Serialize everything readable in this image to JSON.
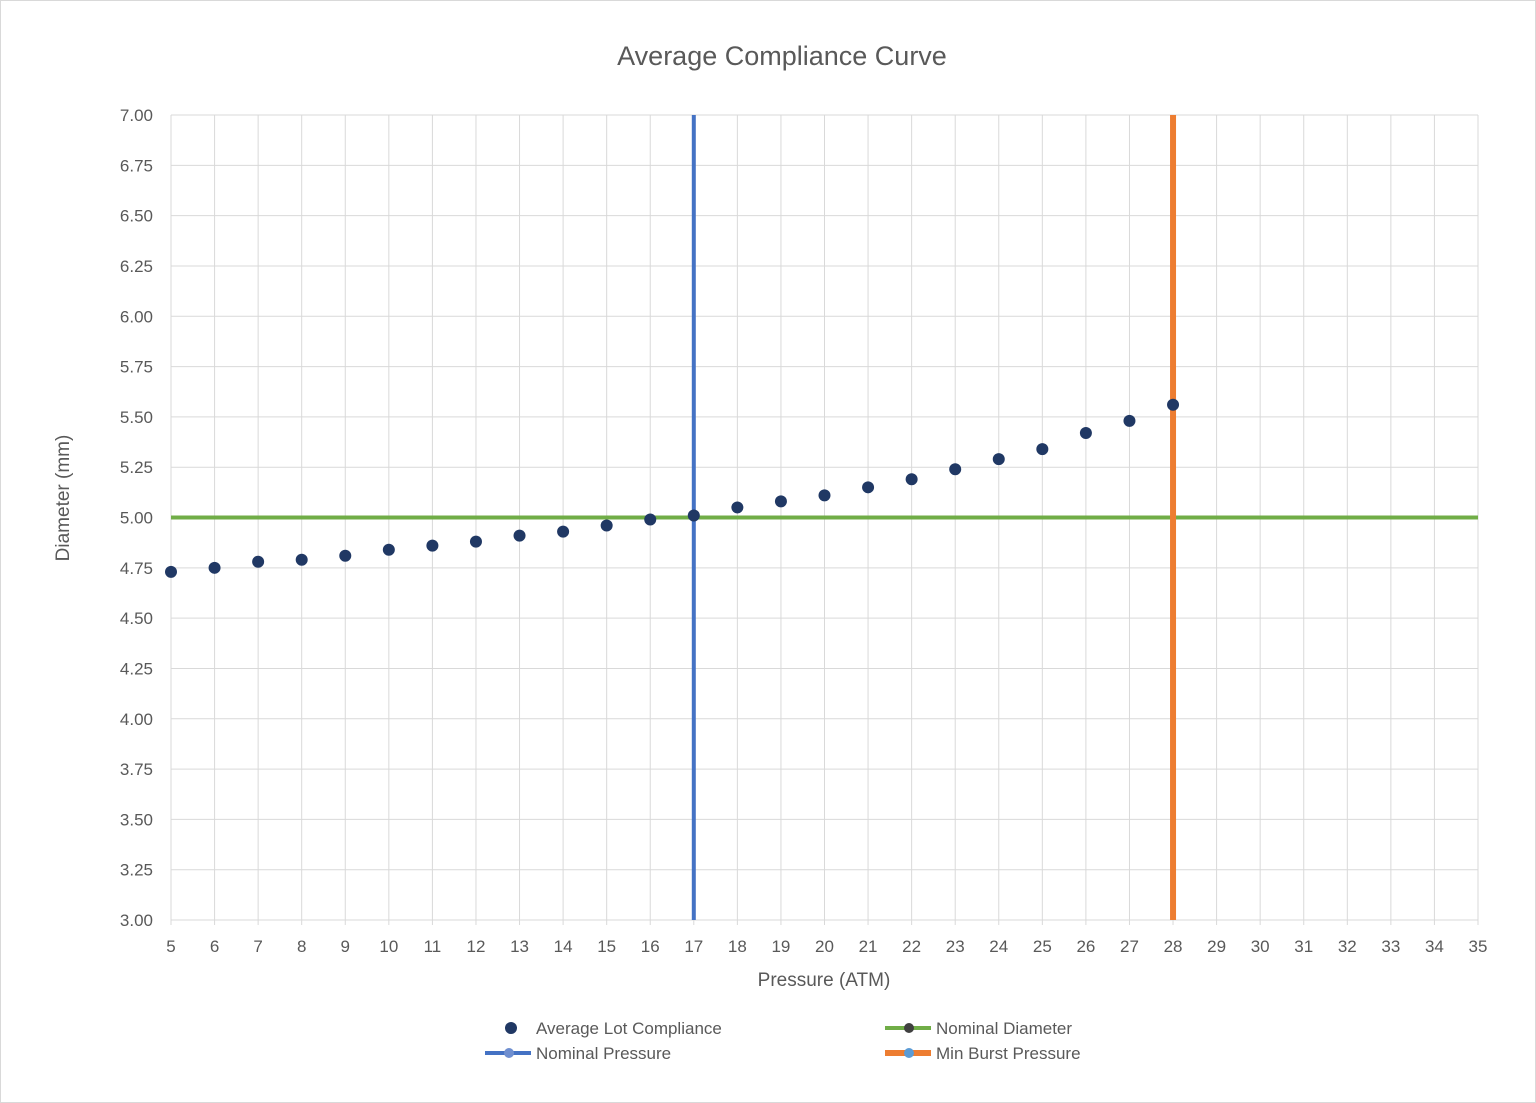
{
  "chart_data": {
    "type": "scatter",
    "title": "Average Compliance Curve",
    "xlabel": "Pressure (ATM)",
    "ylabel": "Diameter (mm)",
    "xlim": [
      5,
      35
    ],
    "ylim": [
      3.0,
      7.0
    ],
    "x_ticks": [
      5,
      6,
      7,
      8,
      9,
      10,
      11,
      12,
      13,
      14,
      15,
      16,
      17,
      18,
      19,
      20,
      21,
      22,
      23,
      24,
      25,
      26,
      27,
      28,
      29,
      30,
      31,
      32,
      33,
      34,
      35
    ],
    "y_ticks": [
      "3.00",
      "3.25",
      "3.50",
      "3.75",
      "4.00",
      "4.25",
      "4.50",
      "4.75",
      "5.00",
      "5.25",
      "5.50",
      "5.75",
      "6.00",
      "6.25",
      "6.50",
      "6.75",
      "7.00"
    ],
    "grid": true,
    "legend_position": "bottom",
    "series": [
      {
        "name": "Average Lot Compliance",
        "kind": "scatter",
        "color": "#203864",
        "x": [
          5,
          6,
          7,
          8,
          9,
          10,
          11,
          12,
          13,
          14,
          15,
          16,
          17,
          18,
          19,
          20,
          21,
          22,
          23,
          24,
          25,
          26,
          27,
          28
        ],
        "y": [
          4.73,
          4.75,
          4.78,
          4.79,
          4.81,
          4.84,
          4.86,
          4.88,
          4.91,
          4.93,
          4.96,
          4.99,
          5.01,
          5.05,
          5.08,
          5.11,
          5.15,
          5.19,
          5.24,
          5.29,
          5.34,
          5.42,
          5.48,
          5.56
        ]
      },
      {
        "name": "Nominal Diameter",
        "kind": "hline",
        "color": "#70ad47",
        "y": 5.0
      },
      {
        "name": "Nominal Pressure",
        "kind": "vline",
        "color": "#4472c4",
        "x": 17
      },
      {
        "name": "Min Burst Pressure",
        "kind": "vline",
        "color": "#ed7d31",
        "x": 28
      }
    ]
  }
}
